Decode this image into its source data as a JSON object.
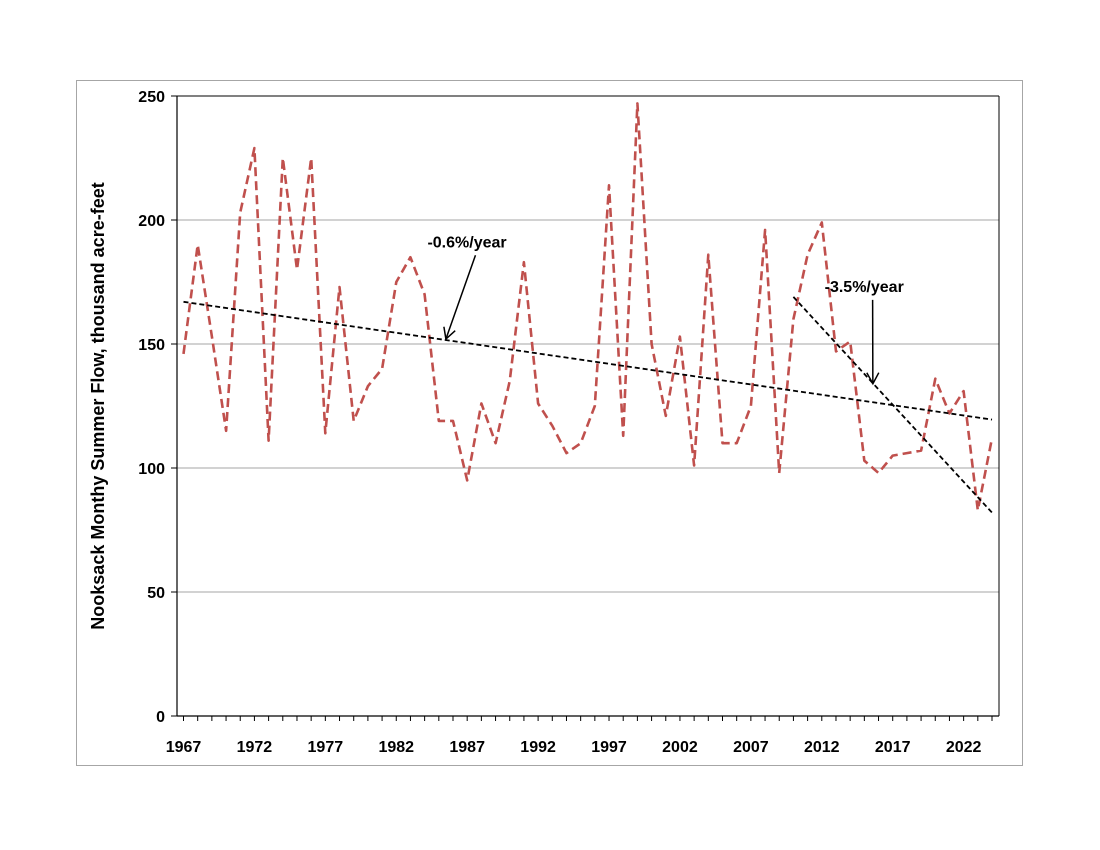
{
  "chart_data": {
    "type": "line",
    "title": "",
    "xlabel": "",
    "ylabel": "Nooksack Monthy Summer Flow, thousand acre-feet",
    "xlim": [
      1967,
      2024
    ],
    "ylim": [
      0,
      250
    ],
    "y_ticks": [
      0,
      50,
      100,
      150,
      200,
      250
    ],
    "x_ticks": [
      1967,
      1972,
      1977,
      1982,
      1987,
      1992,
      1997,
      2002,
      2007,
      2012,
      2017,
      2022
    ],
    "x_tick_labels": [
      "1967",
      "1972",
      "1977",
      "1982",
      "1987",
      "1992",
      "1997",
      "2002",
      "2007",
      "2012",
      "2017",
      "2022"
    ],
    "y_tick_labels": [
      "0",
      "50",
      "100",
      "150",
      "200",
      "250"
    ],
    "grid": "horizontal",
    "series": [
      {
        "color": "#c0504d",
        "style": "dashed",
        "x": [
          1967,
          1968,
          1969,
          1970,
          1971,
          1972,
          1973,
          1974,
          1975,
          1976,
          1977,
          1978,
          1979,
          1980,
          1981,
          1982,
          1983,
          1984,
          1985,
          1986,
          1987,
          1988,
          1989,
          1990,
          1991,
          1992,
          1993,
          1994,
          1995,
          1996,
          1997,
          1998,
          1999,
          2000,
          2001,
          2002,
          2003,
          2004,
          2005,
          2006,
          2007,
          2008,
          2009,
          2010,
          2011,
          2012,
          2013,
          2014,
          2015,
          2016,
          2017,
          2018,
          2019,
          2020,
          2021,
          2022,
          2023,
          2024
        ],
        "values": [
          146,
          190,
          153,
          115,
          203,
          229,
          111,
          225,
          180,
          225,
          114,
          173,
          119,
          133,
          140,
          175,
          185,
          170,
          119,
          119,
          95,
          126,
          110,
          135,
          183,
          126,
          117,
          106,
          110,
          125,
          214,
          113,
          247,
          150,
          121,
          153,
          101,
          186,
          110,
          110,
          125,
          196,
          98,
          160,
          186,
          199,
          147,
          151,
          103,
          98,
          105,
          106,
          107,
          136,
          122,
          131,
          83,
          112
        ]
      },
      {
        "color": "#000000",
        "style": "dashed",
        "x": [
          1967,
          2024
        ],
        "values": [
          167,
          119.5
        ]
      },
      {
        "color": "#000000",
        "style": "dashed",
        "x": [
          2010,
          2024
        ],
        "values": [
          169,
          82
        ]
      }
    ],
    "annotations": [
      {
        "text": "-0.6%/year",
        "text_x": 1984.2,
        "text_y": 189,
        "arrow_to_x": 1985.5,
        "arrow_to_y": 152
      },
      {
        "text": "-3.5%/year",
        "text_x": 2012.2,
        "text_y": 171,
        "arrow_to_x": 2015.6,
        "arrow_to_y": 134
      }
    ]
  }
}
